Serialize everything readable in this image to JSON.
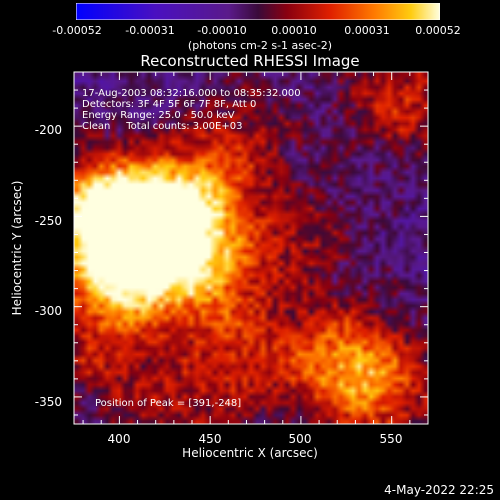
{
  "chart_data": {
    "type": "heatmap",
    "title": "Reconstructed RHESSI Image",
    "xlabel": "Heliocentric X (arcsec)",
    "ylabel": "Heliocentric Y (arcsec)",
    "xlim": [
      375,
      570
    ],
    "ylim": [
      -365,
      -170
    ],
    "x_ticks": [
      "400",
      "450",
      "500",
      "550"
    ],
    "y_ticks": [
      "-200",
      "-250",
      "-300",
      "-350"
    ],
    "colorbar": {
      "ticks": [
        "-0.00052",
        "-0.00031",
        "-0.00010",
        "0.00010",
        "0.00031",
        "0.00052"
      ],
      "label": "(photons cm-2 s-1 asec-2)",
      "range": [
        -0.00052,
        0.00052
      ]
    },
    "annotations": {
      "time": "17-Aug-2003 08:32:16.000 to 08:35:32.000",
      "detectors": "Detectors: 3F 4F 5F 6F 7F 8F, Att 0",
      "energy": "Energy Range: 25.0 - 50.0 keV",
      "clean": "Clean     Total counts: 3.00E+03",
      "peak": "Position of Peak = [391,-248]"
    },
    "peak": {
      "x": 391,
      "y": -248
    },
    "sources": [
      {
        "x": 391,
        "y": -248,
        "amp": 1.0
      },
      {
        "x": 415,
        "y": -262,
        "amp": 0.85
      },
      {
        "x": 440,
        "y": -242,
        "amp": 0.75
      },
      {
        "x": 400,
        "y": -285,
        "amp": 0.65
      },
      {
        "x": 450,
        "y": -285,
        "amp": 0.55
      },
      {
        "x": 520,
        "y": -330,
        "amp": 0.55
      },
      {
        "x": 545,
        "y": -345,
        "amp": 0.5
      },
      {
        "x": 470,
        "y": -330,
        "amp": 0.35
      },
      {
        "x": 555,
        "y": -185,
        "amp": 0.45
      },
      {
        "x": 470,
        "y": -205,
        "amp": 0.3
      },
      {
        "x": 500,
        "y": -262,
        "amp": 0.3
      },
      {
        "x": 430,
        "y": -355,
        "amp": 0.3
      },
      {
        "x": 385,
        "y": -330,
        "amp": 0.3
      }
    ]
  },
  "footer": {
    "timestamp": "4-May-2022 22:25"
  }
}
